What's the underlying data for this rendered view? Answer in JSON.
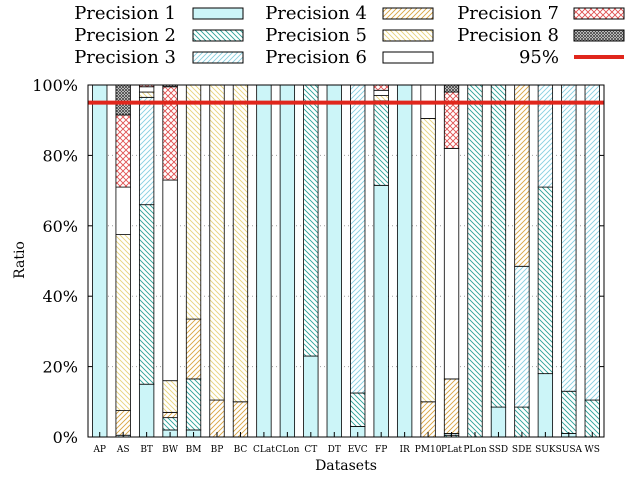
{
  "chart_data": {
    "type": "bar",
    "stacked": true,
    "xlabel": "Datasets",
    "ylabel": "Ratio",
    "ylim": [
      0,
      100
    ],
    "y_ticks": [
      "0%",
      "20%",
      "40%",
      "60%",
      "80%",
      "100%"
    ],
    "grid": "horizontal dotted",
    "legend_position": "top",
    "categories": [
      "AP",
      "AS",
      "BT",
      "BW",
      "BM",
      "BP",
      "BC",
      "CLat",
      "CLon",
      "CT",
      "DT",
      "EVC",
      "FP",
      "IR",
      "PM10",
      "PLat",
      "PLon",
      "SSD",
      "SDE",
      "SUK",
      "SUSA",
      "WS"
    ],
    "series": [
      {
        "name": "Precision 1",
        "pattern": "solid",
        "color": "#ccf5f8",
        "values": [
          100,
          0,
          15,
          2,
          2,
          0,
          0,
          100,
          100,
          23,
          100,
          3,
          71.5,
          100,
          0,
          0,
          0,
          8.5,
          0,
          18,
          1,
          0
        ]
      },
      {
        "name": "Precision 2",
        "pattern": "backslash",
        "color": "#2aa198",
        "values": [
          0,
          0,
          51,
          3.5,
          14.5,
          0,
          0,
          0,
          0,
          77,
          0,
          9.5,
          24,
          0,
          0,
          0.5,
          100,
          91.5,
          8.5,
          53,
          12,
          10.5
        ]
      },
      {
        "name": "Precision 3",
        "pattern": "slash",
        "color": "#87cfe0",
        "values": [
          0,
          0.5,
          30.5,
          0,
          0,
          0,
          0,
          0,
          0,
          0,
          0,
          87.5,
          0,
          0,
          0,
          0.5,
          0,
          0,
          40,
          29,
          87,
          89.5
        ]
      },
      {
        "name": "Precision 4",
        "pattern": "slash",
        "color": "#d9a441",
        "values": [
          0,
          7,
          0,
          1.5,
          17,
          10.5,
          10,
          0,
          0,
          0,
          0,
          0,
          0,
          0,
          10,
          15.5,
          0,
          0,
          51.5,
          0,
          0,
          0
        ]
      },
      {
        "name": "Precision 5",
        "pattern": "backslash",
        "color": "#e8d27a",
        "values": [
          0,
          50,
          1.5,
          9,
          66.5,
          89.5,
          90,
          0,
          0,
          0,
          0,
          0,
          1.5,
          0,
          80.5,
          0,
          0,
          0,
          0,
          0,
          0,
          0
        ]
      },
      {
        "name": "Precision 6",
        "pattern": "open",
        "color": "#222222",
        "values": [
          0,
          13.5,
          1.5,
          57,
          0,
          0,
          0,
          0,
          0,
          0,
          0,
          0,
          1.5,
          0,
          9.5,
          65.5,
          0,
          0,
          0,
          0,
          0,
          0
        ]
      },
      {
        "name": "Precision 7",
        "pattern": "cross",
        "color": "#e05050",
        "values": [
          0,
          20.5,
          0.5,
          26.5,
          0,
          0,
          0,
          0,
          0,
          0,
          0,
          0,
          1.5,
          0,
          0,
          16,
          0,
          0,
          0,
          0,
          0,
          0
        ]
      },
      {
        "name": "Precision 8",
        "pattern": "dense-cross",
        "color": "#444444",
        "values": [
          0,
          8.5,
          0,
          0.5,
          0,
          0,
          0,
          0,
          0,
          0,
          0,
          0,
          0,
          0,
          0,
          2,
          0,
          0,
          0,
          0,
          0,
          0
        ]
      }
    ],
    "reference_line": {
      "name": "95%",
      "value": 95,
      "color": "#e0261c"
    }
  }
}
